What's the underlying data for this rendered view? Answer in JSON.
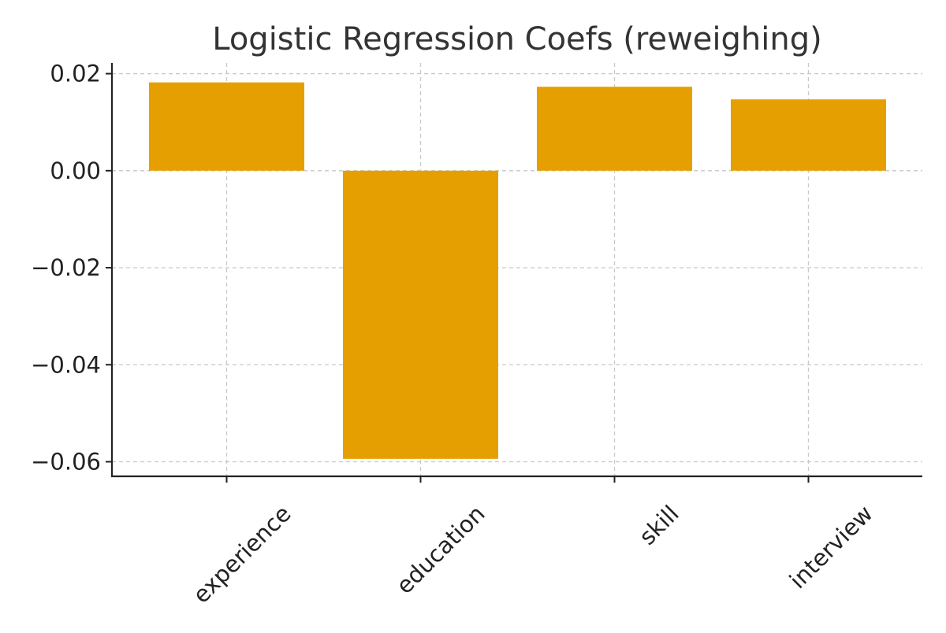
{
  "chart_data": {
    "type": "bar",
    "title": "Logistic Regression Coefs (reweighing)",
    "xlabel": "",
    "ylabel": "",
    "categories": [
      "experience",
      "education",
      "skill",
      "interview"
    ],
    "values": [
      0.0182,
      -0.0594,
      0.0173,
      0.0147
    ],
    "ylim": [
      -0.063,
      0.0222
    ],
    "yticks": [
      0.02,
      0.0,
      -0.02,
      -0.04,
      -0.06
    ],
    "ytick_labels": [
      "0.02",
      "0.00",
      "−0.02",
      "−0.04",
      "−0.06"
    ],
    "grid": true,
    "bar_color": "#e69f00",
    "xtick_rotation_deg": 45
  }
}
